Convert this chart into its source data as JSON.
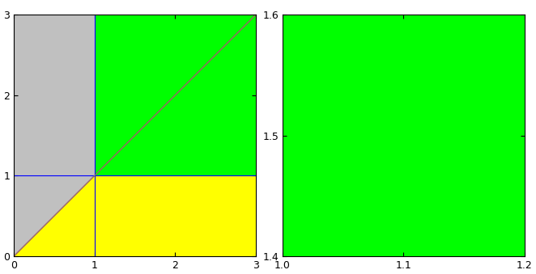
{
  "left_xlim": [
    0,
    3
  ],
  "left_ylim": [
    0,
    3
  ],
  "right_xlim": [
    1.0,
    1.2
  ],
  "right_ylim": [
    1.4,
    1.6
  ],
  "gray_color": "#c0c0c0",
  "yellow_color": "#ffff00",
  "green_color": "#00ff00",
  "red_border_color": "#ff0000",
  "blue_border_color": "#0000ff",
  "gray_line_color": "#808080",
  "left_xticks": [
    0,
    1,
    2,
    3
  ],
  "left_yticks": [
    0,
    1,
    2,
    3
  ],
  "right_xticks": [
    1.0,
    1.1,
    1.2
  ],
  "right_yticks": [
    1.4,
    1.5,
    1.6
  ],
  "resolution": 800
}
